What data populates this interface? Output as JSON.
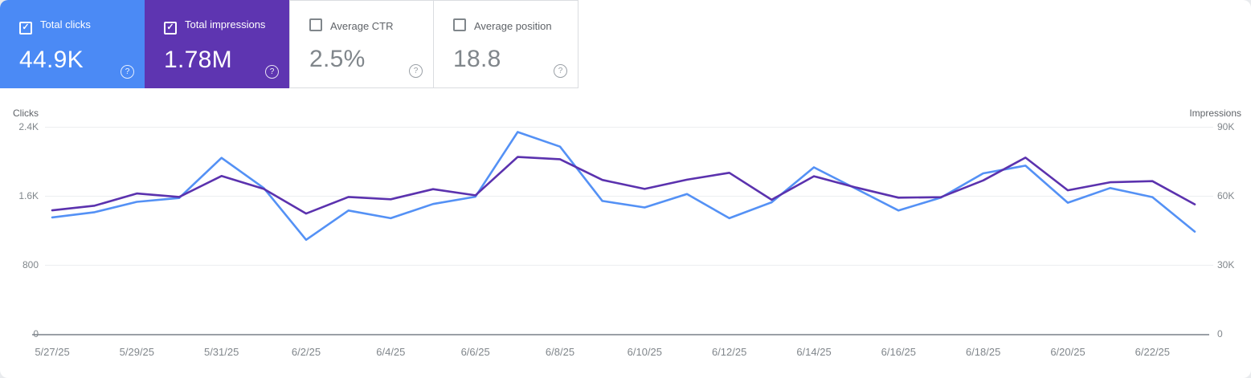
{
  "cards": [
    {
      "id": "total-clicks",
      "label": "Total clicks",
      "value": "44.9K",
      "selected": true,
      "bg": "#4b8af5"
    },
    {
      "id": "total-impressions",
      "label": "Total impressions",
      "value": "1.78M",
      "selected": true,
      "bg": "#5e35b1"
    },
    {
      "id": "average-ctr",
      "label": "Average CTR",
      "value": "2.5%",
      "selected": false,
      "bg": "#ffffff"
    },
    {
      "id": "average-position",
      "label": "Average position",
      "value": "18.8",
      "selected": false,
      "bg": "#ffffff"
    }
  ],
  "icons": {
    "help": "?",
    "check": "✓"
  },
  "chart_data": {
    "type": "line",
    "x": [
      "5/27/25",
      "5/28/25",
      "5/29/25",
      "5/30/25",
      "5/31/25",
      "6/1/25",
      "6/2/25",
      "6/3/25",
      "6/4/25",
      "6/5/25",
      "6/6/25",
      "6/7/25",
      "6/8/25",
      "6/9/25",
      "6/10/25",
      "6/11/25",
      "6/12/25",
      "6/13/25",
      "6/14/25",
      "6/15/25",
      "6/16/25",
      "6/17/25",
      "6/18/25",
      "6/19/25",
      "6/20/25",
      "6/21/25",
      "6/22/25",
      "6/23/25"
    ],
    "x_tick_labels": [
      "5/27/25",
      "5/29/25",
      "5/31/25",
      "6/2/25",
      "6/4/25",
      "6/6/25",
      "6/8/25",
      "6/10/25",
      "6/12/25",
      "6/14/25",
      "6/16/25",
      "6/18/25",
      "6/20/25",
      "6/22/25"
    ],
    "series": [
      {
        "id": "clicks",
        "name": "Clicks",
        "axis": "left",
        "color": "#5491f5",
        "values": [
          1350,
          1410,
          1530,
          1575,
          2040,
          1690,
          1090,
          1430,
          1340,
          1505,
          1590,
          2340,
          2170,
          1540,
          1465,
          1620,
          1340,
          1525,
          1930,
          1680,
          1430,
          1580,
          1860,
          1950,
          1520,
          1690,
          1585,
          1185
        ]
      },
      {
        "id": "impressions",
        "name": "Impressions",
        "axis": "right",
        "color": "#5b32ae",
        "values": [
          53700,
          55700,
          61000,
          59500,
          68600,
          63000,
          52300,
          59500,
          58500,
          62900,
          60200,
          76900,
          75900,
          66900,
          63000,
          67000,
          70000,
          58300,
          68500,
          63600,
          59200,
          59400,
          66700,
          76600,
          62400,
          65900,
          66400,
          56300
        ]
      }
    ],
    "left_axis": {
      "title": "Clicks",
      "max": 2400,
      "ticks": [
        "2.4K",
        "1.6K",
        "800",
        "0"
      ]
    },
    "right_axis": {
      "title": "Impressions",
      "max": 90000,
      "ticks": [
        "90K",
        "60K",
        "30K",
        "0"
      ]
    },
    "grid": true,
    "legend_position": "none"
  }
}
